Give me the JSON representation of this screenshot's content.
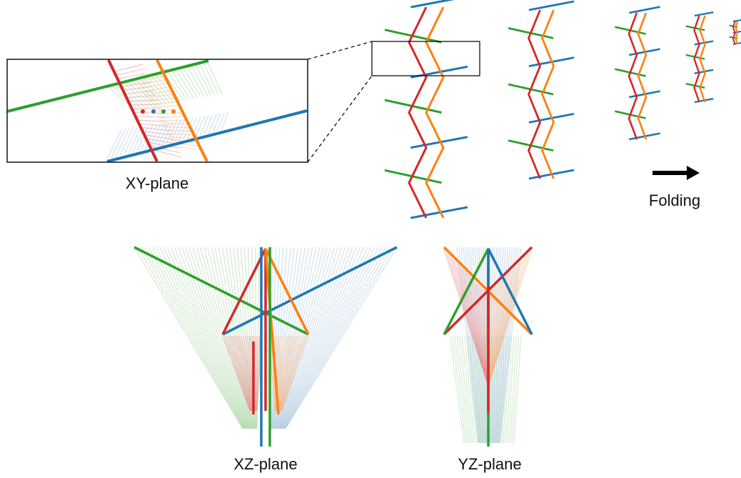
{
  "labels": {
    "xy_plane": "XY-plane",
    "xz_plane": "XZ-plane",
    "yz_plane": "YZ-plane",
    "folding": "Folding"
  },
  "colors": {
    "red": "#d62728",
    "orange": "#ff7f0e",
    "green": "#2ca02c",
    "blue": "#1f77b4",
    "red_fade": "#e88585",
    "orange_fade": "#f7b27c",
    "green_fade": "#9ccf94",
    "blue_fade": "#9cbcd9",
    "frame": "#111111",
    "arrow": "#000000"
  }
}
